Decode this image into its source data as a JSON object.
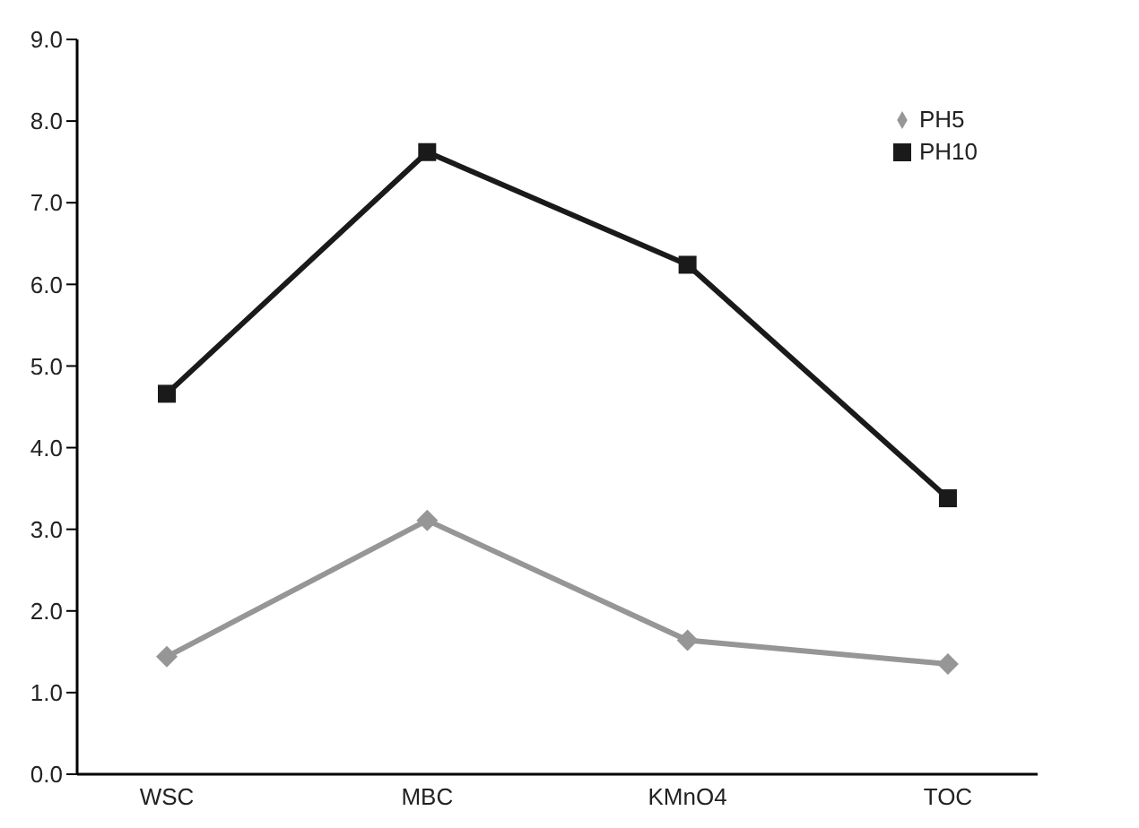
{
  "chart_data": {
    "type": "line",
    "categories": [
      "WSC",
      "MBC",
      "KMnO4",
      "TOC"
    ],
    "series": [
      {
        "name": "PH5",
        "color": "#969696",
        "marker": "diamond",
        "values": [
          1.44,
          3.11,
          1.64,
          1.35
        ]
      },
      {
        "name": "PH10",
        "color": "#1a1a1a",
        "marker": "square",
        "values": [
          4.66,
          7.62,
          6.24,
          3.38
        ]
      }
    ],
    "ylim": [
      0,
      9
    ],
    "yticks": [
      {
        "value": 0,
        "label": "0.0"
      },
      {
        "value": 1,
        "label": "1.0"
      },
      {
        "value": 2,
        "label": "2.0"
      },
      {
        "value": 3,
        "label": "3.0"
      },
      {
        "value": 4,
        "label": "4.0"
      },
      {
        "value": 5,
        "label": "5.0"
      },
      {
        "value": 6,
        "label": "6.0"
      },
      {
        "value": 7,
        "label": "7.0"
      },
      {
        "value": 8,
        "label": "8.0"
      },
      {
        "value": 9,
        "label": "9.0"
      }
    ],
    "grid": false,
    "legend": "top right",
    "line_style": "solid"
  }
}
